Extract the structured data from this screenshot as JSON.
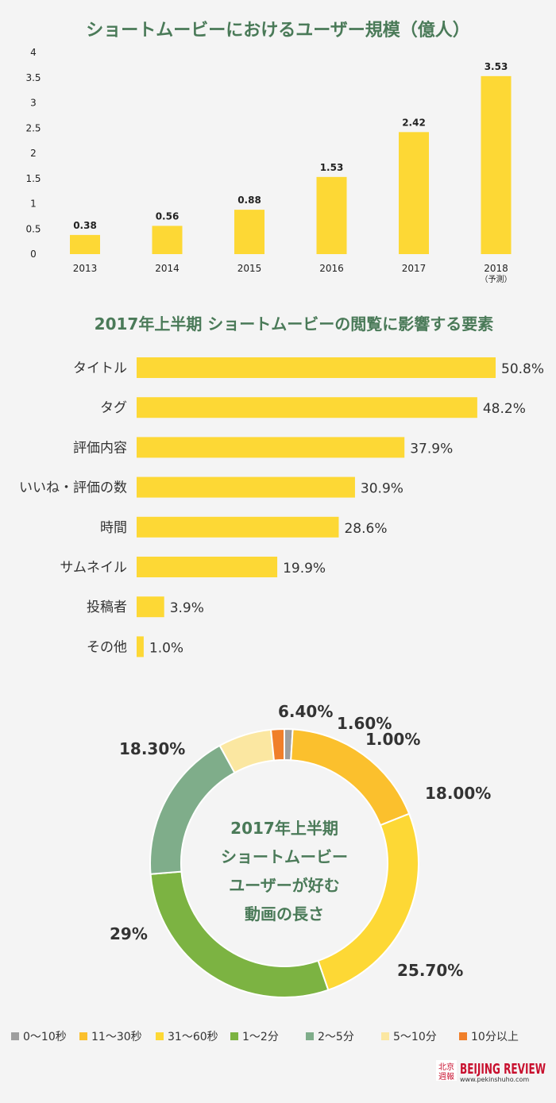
{
  "chart_data": [
    {
      "type": "bar",
      "title": "ショートムービーにおけるユーザー規模（億人）",
      "categories": [
        "2013",
        "2014",
        "2015",
        "2016",
        "2017",
        "2018"
      ],
      "category_notes": [
        "",
        "",
        "",
        "",
        "",
        "（予測）"
      ],
      "values": [
        0.38,
        0.56,
        0.88,
        1.53,
        2.42,
        3.53
      ],
      "value_labels": [
        "0.38",
        "0.56",
        "0.88",
        "1.53",
        "2.42",
        "3.53"
      ],
      "yticks": [
        "0",
        "0.5",
        "1",
        "1.5",
        "2",
        "2.5",
        "3",
        "3.5",
        "4"
      ],
      "ylim": [
        0,
        4
      ],
      "color": "#fdd835"
    },
    {
      "type": "bar",
      "orientation": "horizontal",
      "title": "2017年上半期 ショートムービーの閲覧に影響する要素",
      "categories": [
        "タイトル",
        "タグ",
        "評価内容",
        "いいね・評価の数",
        "時間",
        "サムネイル",
        "投稿者",
        "その他"
      ],
      "values": [
        50.8,
        48.2,
        37.9,
        30.9,
        28.6,
        19.9,
        3.9,
        1.0
      ],
      "value_labels": [
        "50.8%",
        "48.2%",
        "37.9%",
        "30.9%",
        "28.6%",
        "19.9%",
        "3.9%",
        "1.0%"
      ],
      "color": "#fdd835"
    },
    {
      "type": "pie",
      "donut": true,
      "center_text": [
        "2017年上半期",
        "ショートムービー",
        "ユーザーが好む",
        "動画の長さ"
      ],
      "slices": [
        {
          "name": "0～10秒",
          "value": 1.0,
          "label": "1.00%",
          "color": "#9e9e9e"
        },
        {
          "name": "11～30秒",
          "value": 18.0,
          "label": "18.00%",
          "color": "#fbc02d"
        },
        {
          "name": "31～60秒",
          "value": 25.7,
          "label": "25.70%",
          "color": "#fdd835"
        },
        {
          "name": "1～2分",
          "value": 29.0,
          "label": "29%",
          "color": "#7cb342"
        },
        {
          "name": "2～5分",
          "value": 18.3,
          "label": "18.30%",
          "color": "#7fad8a"
        },
        {
          "name": "5～10分",
          "value": 6.4,
          "label": "6.40%",
          "color": "#fbe7a1"
        },
        {
          "name": "10分以上",
          "value": 1.6,
          "label": "1.60%",
          "color": "#f07f2a"
        }
      ],
      "legend_position": "bottom"
    }
  ],
  "logo": {
    "cn1": "北京",
    "cn2": "週報",
    "en": "BEIJING REVIEW",
    "url": "www.pekinshuho.com"
  }
}
